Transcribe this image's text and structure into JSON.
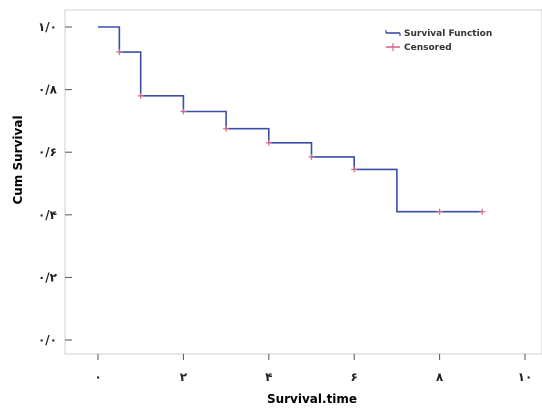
{
  "chart_data": {
    "type": "line",
    "step": true,
    "xlabel": "Survival.time",
    "ylabel": "Cum Survival",
    "xlim": [
      0,
      10
    ],
    "ylim": [
      0,
      1
    ],
    "x_ticks": [
      {
        "value": 0,
        "label": "٠"
      },
      {
        "value": 2,
        "label": "٢"
      },
      {
        "value": 4,
        "label": "۴"
      },
      {
        "value": 6,
        "label": "۶"
      },
      {
        "value": 8,
        "label": "٨"
      },
      {
        "value": 10,
        "label": "١٠"
      }
    ],
    "y_ticks": [
      {
        "value": 0,
        "label": "٠/٠"
      },
      {
        "value": 0.2,
        "label": "٠/٢"
      },
      {
        "value": 0.4,
        "label": "٠/۴"
      },
      {
        "value": 0.6,
        "label": "٠/۶"
      },
      {
        "value": 0.8,
        "label": "٠/٨"
      },
      {
        "value": 1.0,
        "label": "١/٠"
      }
    ],
    "grid": false,
    "legend_position": "top-right",
    "series": [
      {
        "name": "Survival Function",
        "color": "#3b4fa8",
        "x": [
          0,
          0.5,
          1.0,
          2.0,
          3.0,
          4.0,
          5.0,
          6.0,
          7.0,
          9.0
        ],
        "y": [
          1.0,
          0.92,
          0.78,
          0.73,
          0.675,
          0.63,
          0.585,
          0.545,
          0.41,
          0.41
        ]
      },
      {
        "name": "Censored",
        "color": "#d86a8a",
        "marker": "plus",
        "x": [
          0.5,
          1.0,
          2.0,
          3.0,
          4.0,
          5.0,
          6.0,
          8.0,
          9.0
        ],
        "y": [
          0.92,
          0.78,
          0.73,
          0.675,
          0.63,
          0.585,
          0.545,
          0.41,
          0.41
        ]
      }
    ]
  }
}
